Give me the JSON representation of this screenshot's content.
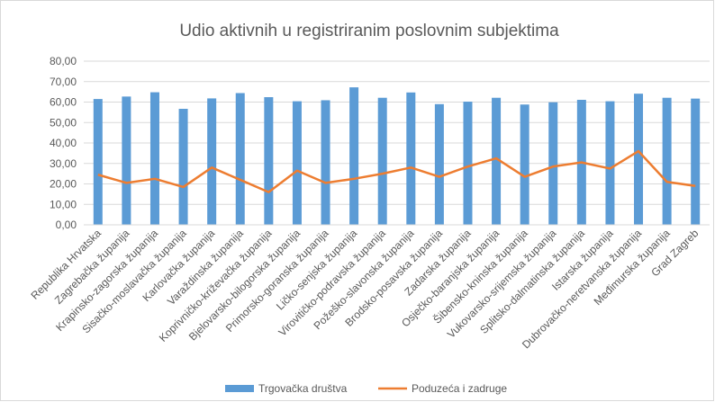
{
  "chart_data": {
    "type": "bar_line",
    "title": "Udio aktivnih u registriranim poslovnim subjektima",
    "categories": [
      "Republika Hrvatska",
      "Zagrebačka županija",
      "Krapinsko-zagorska županija",
      "Sisačko-moslavačka županija",
      "Karlovačka županija",
      "Varaždinska županija",
      "Koprivničko-križevačka županija",
      "Bjelovarsko-bilogorska županija",
      "Primorsko-goranska županija",
      "Ličko-senjska županija",
      "Virovitičko-podravska županija",
      "Požeško-slavonska županija",
      "Brodsko-posavska županija",
      "Zadarska županija",
      "Osječko-baranjska županija",
      "Šibensko-kninska županija",
      "Vukovarsko-srijemska županija",
      "Splitsko-dalmatinska županija",
      "Istarska županija",
      "Dubrovačko-neretvanska županija",
      "Međimurska županija",
      "Grad Zagreb"
    ],
    "series": [
      {
        "name": "Trgovačka društva",
        "type": "bar",
        "color": "#5b9bd5",
        "values": [
          61.5,
          62.7,
          64.8,
          56.7,
          61.8,
          64.4,
          62.4,
          60.4,
          60.9,
          67.2,
          62.1,
          64.7,
          59.0,
          60.2,
          62.1,
          58.8,
          59.9,
          61.1,
          60.4,
          64.1,
          62.1,
          61.7
        ]
      },
      {
        "name": "Poduzeća i zadruge",
        "type": "line",
        "color": "#ed7d31",
        "values": [
          24.5,
          20.5,
          22.5,
          18.5,
          28,
          22,
          16,
          26.5,
          20.5,
          22.5,
          25,
          28,
          23.5,
          28.5,
          32.5,
          23.5,
          28.5,
          30.5,
          27.5,
          36,
          21,
          19
        ]
      }
    ],
    "ylim": [
      0,
      80
    ],
    "yticks": [
      {
        "value": 0,
        "label": "0,00"
      },
      {
        "value": 10,
        "label": "10,00"
      },
      {
        "value": 20,
        "label": "20,00"
      },
      {
        "value": 30,
        "label": "30,00"
      },
      {
        "value": 40,
        "label": "40,00"
      },
      {
        "value": 50,
        "label": "50,00"
      },
      {
        "value": 60,
        "label": "60,00"
      },
      {
        "value": 70,
        "label": "70,00"
      },
      {
        "value": 80,
        "label": "80,00"
      }
    ],
    "grid": true,
    "legend": "bottom"
  }
}
